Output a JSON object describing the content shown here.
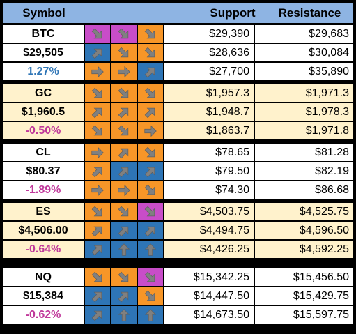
{
  "colors": {
    "header_bg": "#8eb4e3",
    "white_row": "#ffffff",
    "yellow_row": "#fff2cc",
    "orange": "#f79628",
    "blue": "#2e75b6",
    "magenta": "#c84dc8",
    "arrow_gray": "#808080",
    "positive_text": "#2e75b6",
    "negative_text": "#c0399b"
  },
  "header": {
    "symbol": "Symbol",
    "support": "Support",
    "resistance": "Resistance"
  },
  "groups": [
    {
      "row_color": "white",
      "rows": [
        {
          "label": "BTC",
          "label_style": "plain",
          "arrows": [
            {
              "dir": "down-right",
              "color": "magenta"
            },
            {
              "dir": "down-right",
              "color": "magenta"
            },
            {
              "dir": "down-right",
              "color": "orange"
            }
          ],
          "support": "$29,390",
          "resistance": "$29,683"
        },
        {
          "label": "$29,505",
          "label_style": "plain",
          "arrows": [
            {
              "dir": "up-right",
              "color": "blue"
            },
            {
              "dir": "down-right",
              "color": "orange"
            },
            {
              "dir": "down-right",
              "color": "orange"
            }
          ],
          "support": "$28,636",
          "resistance": "$30,084"
        },
        {
          "label": "1.27%",
          "label_style": "pos",
          "arrows": [
            {
              "dir": "right",
              "color": "orange"
            },
            {
              "dir": "right",
              "color": "orange"
            },
            {
              "dir": "up-right",
              "color": "blue"
            }
          ],
          "support": "$27,700",
          "resistance": "$35,890"
        }
      ]
    },
    {
      "row_color": "yellow",
      "rows": [
        {
          "label": "GC",
          "label_style": "plain",
          "arrows": [
            {
              "dir": "down-right",
              "color": "orange"
            },
            {
              "dir": "down-right",
              "color": "orange"
            },
            {
              "dir": "down-right",
              "color": "orange"
            }
          ],
          "support": "$1,957.3",
          "resistance": "$1,971.3"
        },
        {
          "label": "$1,960.5",
          "label_style": "plain",
          "arrows": [
            {
              "dir": "up-right",
              "color": "orange"
            },
            {
              "dir": "up-right",
              "color": "orange"
            },
            {
              "dir": "up-right",
              "color": "orange"
            }
          ],
          "support": "$1,948.7",
          "resistance": "$1,978.3"
        },
        {
          "label": "-0.50%",
          "label_style": "neg",
          "arrows": [
            {
              "dir": "down-right",
              "color": "orange"
            },
            {
              "dir": "down-right",
              "color": "orange"
            },
            {
              "dir": "right",
              "color": "orange"
            }
          ],
          "support": "$1,863.7",
          "resistance": "$1,971.8"
        }
      ]
    },
    {
      "row_color": "white",
      "rows": [
        {
          "label": "CL",
          "label_style": "plain",
          "arrows": [
            {
              "dir": "right",
              "color": "orange"
            },
            {
              "dir": "up-right",
              "color": "orange"
            },
            {
              "dir": "down-right",
              "color": "orange"
            }
          ],
          "support": "$78.65",
          "resistance": "$81.28"
        },
        {
          "label": "$80.37",
          "label_style": "plain",
          "arrows": [
            {
              "dir": "up-right",
              "color": "orange"
            },
            {
              "dir": "up-right",
              "color": "blue"
            },
            {
              "dir": "up-right",
              "color": "blue"
            }
          ],
          "support": "$79.50",
          "resistance": "$82.19"
        },
        {
          "label": "-1.89%",
          "label_style": "neg",
          "arrows": [
            {
              "dir": "right",
              "color": "orange"
            },
            {
              "dir": "right",
              "color": "orange"
            },
            {
              "dir": "down-right",
              "color": "orange"
            }
          ],
          "support": "$74.30",
          "resistance": "$86.68"
        }
      ]
    },
    {
      "row_color": "yellow",
      "rows": [
        {
          "label": "ES",
          "label_style": "plain",
          "arrows": [
            {
              "dir": "down-right",
              "color": "orange"
            },
            {
              "dir": "down-right",
              "color": "orange"
            },
            {
              "dir": "down-right",
              "color": "magenta"
            }
          ],
          "support": "$4,503.75",
          "resistance": "$4,525.75"
        },
        {
          "label": "$4,506.00",
          "label_style": "plain",
          "arrows": [
            {
              "dir": "up-right",
              "color": "orange"
            },
            {
              "dir": "up-right",
              "color": "blue"
            },
            {
              "dir": "up-right",
              "color": "blue"
            }
          ],
          "support": "$4,494.75",
          "resistance": "$4,596.50"
        },
        {
          "label": "-0.64%",
          "label_style": "neg",
          "arrows": [
            {
              "dir": "up-right",
              "color": "blue"
            },
            {
              "dir": "up",
              "color": "blue"
            },
            {
              "dir": "up",
              "color": "blue"
            }
          ],
          "support": "$4,426.25",
          "resistance": "$4,592.25"
        }
      ]
    },
    {
      "row_color": "white",
      "rows": [
        {
          "label": "NQ",
          "label_style": "plain",
          "arrows": [
            {
              "dir": "down-right",
              "color": "orange"
            },
            {
              "dir": "down-right",
              "color": "orange"
            },
            {
              "dir": "down-right",
              "color": "magenta"
            }
          ],
          "support": "$15,342.25",
          "resistance": "$15,456.50"
        },
        {
          "label": "$15,384",
          "label_style": "plain",
          "arrows": [
            {
              "dir": "up-right",
              "color": "blue"
            },
            {
              "dir": "up-right",
              "color": "blue"
            },
            {
              "dir": "down-right",
              "color": "orange"
            }
          ],
          "support": "$14,447.50",
          "resistance": "$15,429.75"
        },
        {
          "label": "-0.62%",
          "label_style": "neg",
          "arrows": [
            {
              "dir": "up-right",
              "color": "blue"
            },
            {
              "dir": "up",
              "color": "blue"
            },
            {
              "dir": "up",
              "color": "blue"
            }
          ],
          "support": "$14,673.50",
          "resistance": "$15,597.75"
        }
      ]
    }
  ]
}
